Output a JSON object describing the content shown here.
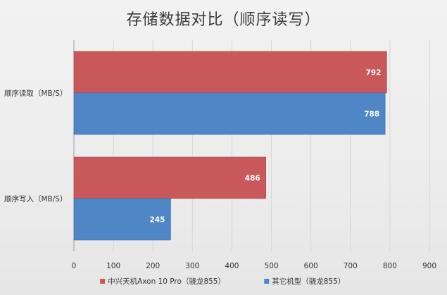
{
  "chart_data": {
    "type": "bar",
    "orientation": "horizontal",
    "title": "存储数据对比（顺序读写）",
    "categories": [
      "顺序读取（MB/S）",
      "顺序写入（MB/S）"
    ],
    "series": [
      {
        "name": "中兴天机Axon 10 Pro（骁龙855）",
        "values": [
          792,
          486
        ],
        "color": "#c9585b"
      },
      {
        "name": "其它机型（骁龙855）",
        "values": [
          788,
          245
        ],
        "color": "#4f86c6"
      }
    ],
    "xlim": [
      0,
      900
    ],
    "xticks": [
      0,
      100,
      200,
      300,
      400,
      500,
      600,
      700,
      800,
      900
    ],
    "grid": true,
    "legend_position": "bottom"
  }
}
